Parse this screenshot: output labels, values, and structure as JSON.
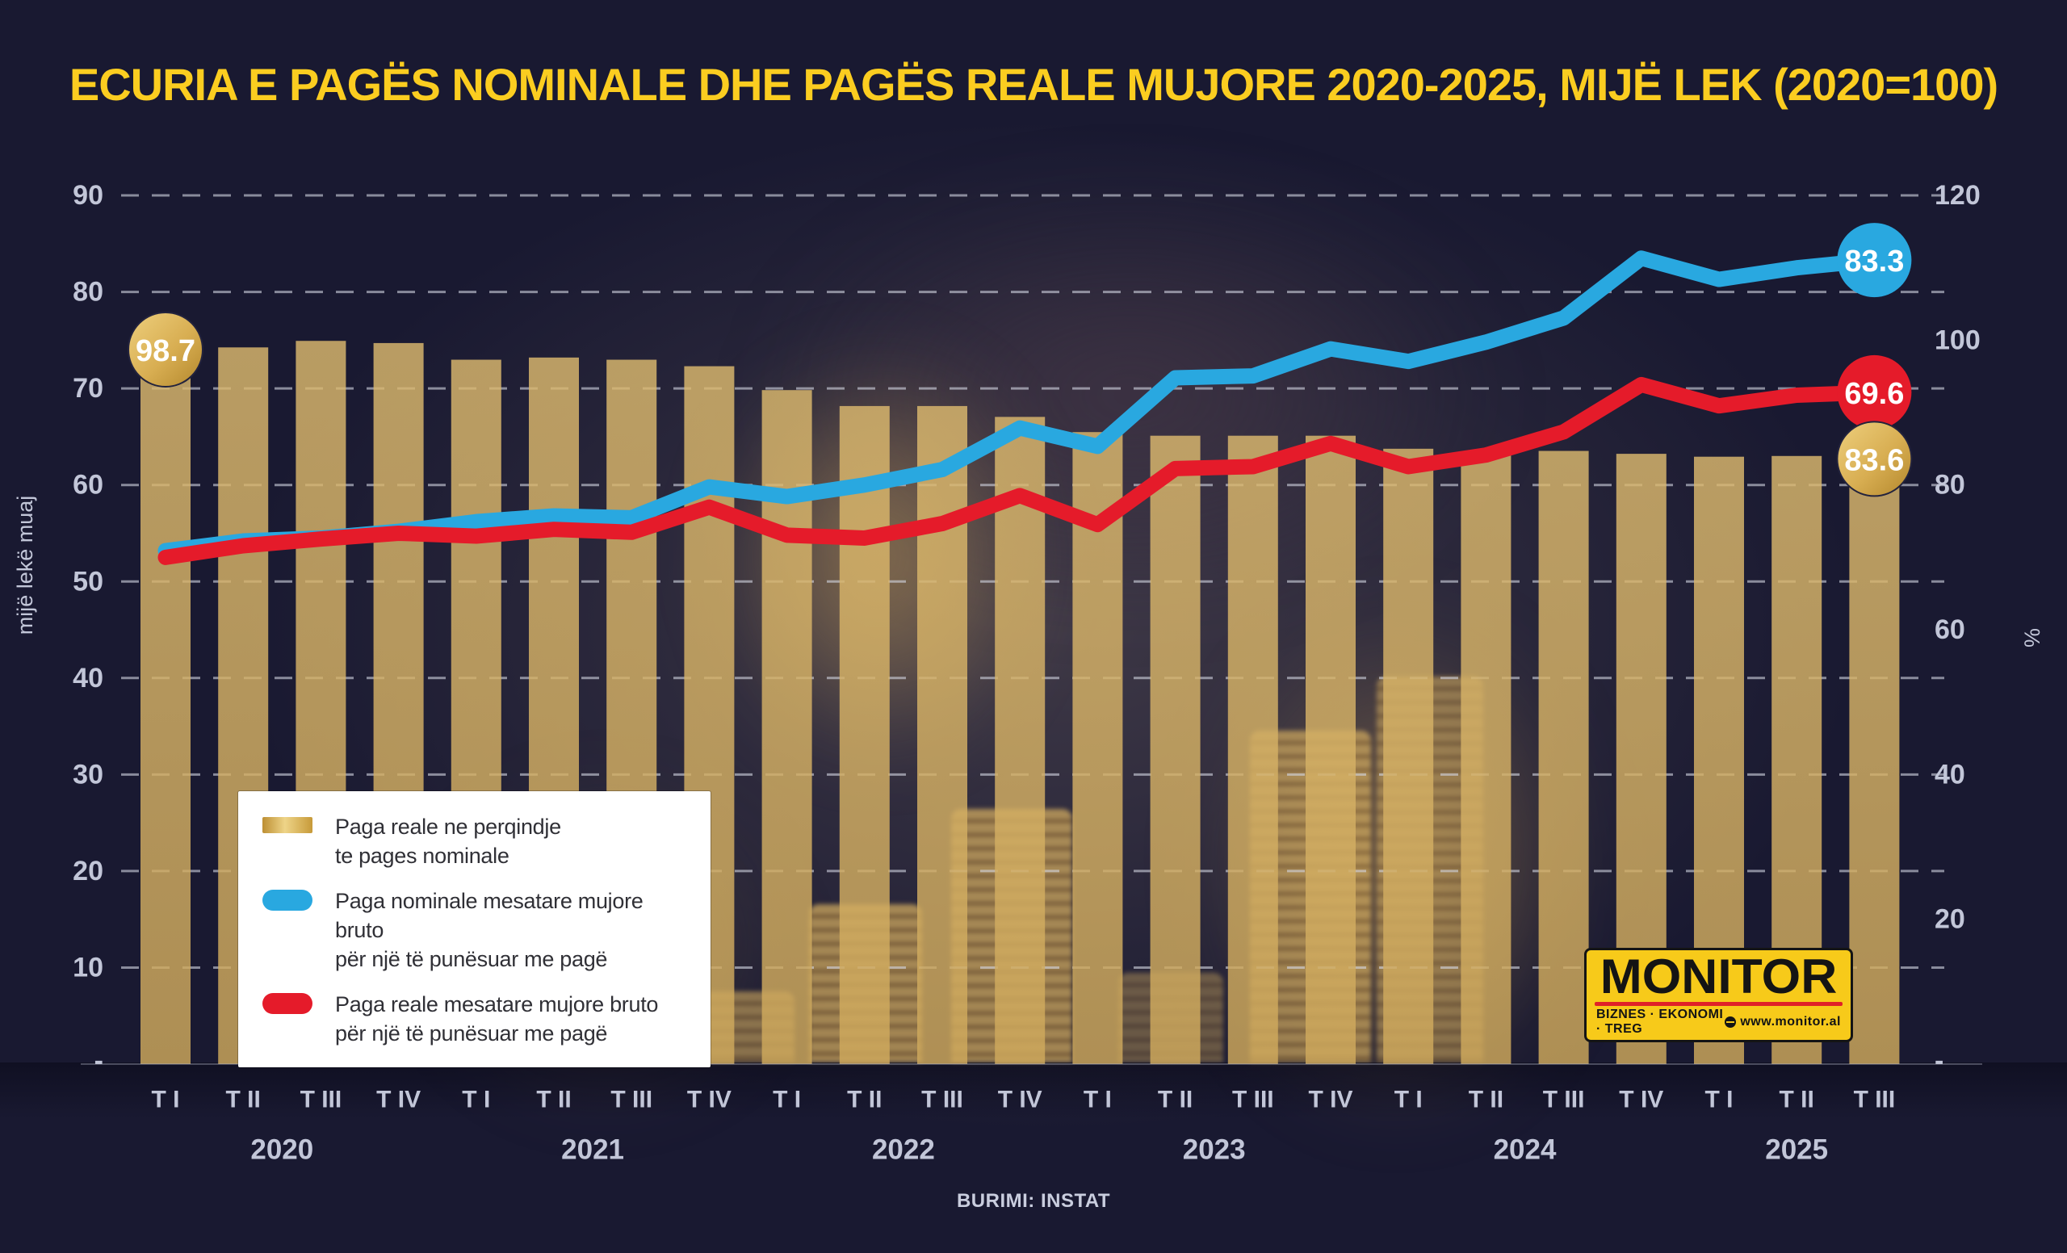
{
  "title": "ECURIA E PAGËS NOMINALE DHE PAGËS REALE MUJORE 2020-2025, MIJË LEK (2020=100)",
  "source": "BURIMI: INSTAT",
  "colors": {
    "background": "#191931",
    "title": "#fbcd20",
    "bar": "#d7b366",
    "blue": "#29a8e0",
    "red": "#e51b2a",
    "grid": "#d4d7e3",
    "axis_text": "#c2c6d8",
    "gold_badge_light": "#eecf7d",
    "gold_badge_dark": "#b3872c"
  },
  "axes": {
    "left_title": "mijë lekë muaj",
    "right_title": "%",
    "left_ticks": [
      90,
      80,
      70,
      60,
      50,
      40,
      30,
      20,
      10
    ],
    "right_ticks": [
      120,
      100,
      80,
      60,
      40,
      20
    ],
    "zero_label": "-"
  },
  "legend": [
    {
      "swatch": "gold-bar",
      "lines": [
        "Paga reale ne perqindje",
        "te pages nominale"
      ]
    },
    {
      "swatch": "blue-line",
      "lines": [
        "Paga nominale mesatare mujore bruto",
        "për një të punësuar me pagë"
      ]
    },
    {
      "swatch": "red-line",
      "lines": [
        "Paga reale mesatare mujore bruto",
        "për një të punësuar me pagë"
      ]
    }
  ],
  "logo": {
    "name": "MONITOR",
    "tagline": "BIZNES · EKONOMI · TREG",
    "site": "www.monitor.al"
  },
  "chart_data": {
    "type": "bar+line",
    "ylim_left": [
      0,
      90
    ],
    "ylim_right": [
      0,
      120
    ],
    "grid": "dashed-horizontal",
    "legend_position": "inside-left-bottom",
    "quarters": [
      "T I",
      "T II",
      "T III",
      "T IV",
      "T I",
      "T II",
      "T III",
      "T IV",
      "T I",
      "T II",
      "T III",
      "T IV",
      "T I",
      "T II",
      "T III",
      "T IV",
      "T I",
      "T II",
      "T III",
      "T IV",
      "T I",
      "T II",
      "T III"
    ],
    "year_groups": [
      {
        "label": "2020",
        "start": 0,
        "count": 4
      },
      {
        "label": "2021",
        "start": 4,
        "count": 4
      },
      {
        "label": "2022",
        "start": 8,
        "count": 4
      },
      {
        "label": "2023",
        "start": 12,
        "count": 4
      },
      {
        "label": "2024",
        "start": 16,
        "count": 4
      },
      {
        "label": "2025",
        "start": 20,
        "count": 3
      }
    ],
    "series": [
      {
        "name": "Paga reale ne perqindje te pages nominale",
        "type": "bar",
        "axis": "right",
        "color_key": "bar",
        "values": [
          98.7,
          99.0,
          99.9,
          99.6,
          97.3,
          97.6,
          97.3,
          96.4,
          93.1,
          90.9,
          90.9,
          89.4,
          87.3,
          86.8,
          86.8,
          86.8,
          85.0,
          84.4,
          84.7,
          84.3,
          83.9,
          84.0,
          83.6
        ]
      },
      {
        "name": "Paga nominale mesatare mujore bruto për një të punësuar me pagë",
        "type": "line",
        "axis": "left",
        "color_key": "blue",
        "values": [
          53.2,
          54.2,
          54.5,
          55.2,
          56.2,
          56.8,
          56.6,
          59.8,
          58.8,
          60.0,
          61.6,
          65.9,
          64.0,
          71.1,
          71.3,
          74.1,
          72.8,
          74.8,
          77.3,
          83.5,
          81.3,
          82.5,
          83.3
        ]
      },
      {
        "name": "Paga reale mesatare mujore bruto për një të punësuar me pagë",
        "type": "line",
        "axis": "left",
        "color_key": "red",
        "values": [
          52.5,
          53.7,
          54.4,
          55.0,
          54.7,
          55.4,
          55.1,
          57.7,
          54.8,
          54.5,
          56.0,
          58.9,
          55.9,
          61.7,
          61.9,
          64.3,
          61.9,
          63.1,
          65.5,
          70.4,
          68.2,
          69.3,
          69.6
        ]
      }
    ],
    "badges": [
      {
        "text": "98.7",
        "series": 0,
        "index": 0,
        "style": "gold"
      },
      {
        "text": "83.3",
        "series": 1,
        "index": 22,
        "style": "blue"
      },
      {
        "text": "69.6",
        "series": 2,
        "index": 22,
        "style": "red"
      },
      {
        "text": "83.6",
        "series": 0,
        "index": 22,
        "style": "gold"
      }
    ]
  }
}
